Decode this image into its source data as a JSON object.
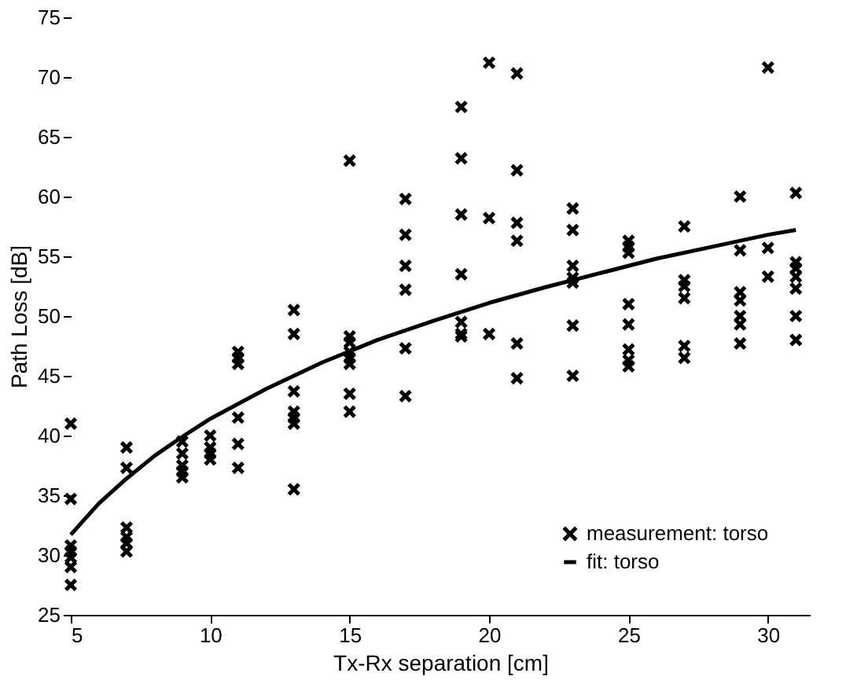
{
  "chart_data": {
    "type": "scatter",
    "xlabel": "Tx-Rx separation [cm]",
    "ylabel": "Path Loss [dB]",
    "xlim": [
      5,
      31.5
    ],
    "xticks": [
      5,
      10,
      15,
      20,
      25,
      30
    ],
    "ylim": [
      25,
      75
    ],
    "yticks": [
      25,
      30,
      35,
      40,
      45,
      50,
      55,
      60,
      65,
      70,
      75
    ],
    "grid": false,
    "legend": "bottom right",
    "series": [
      {
        "name": "measurement: torso",
        "color": "#000000",
        "marker": "cross",
        "x": [
          5,
          5,
          5,
          5,
          5,
          5,
          5,
          7,
          7,
          7,
          7,
          7,
          7,
          9,
          9,
          9,
          9,
          9,
          10,
          10,
          10,
          10,
          11,
          11,
          11,
          11,
          11,
          11,
          13,
          13,
          13,
          13,
          13,
          13,
          13,
          15,
          15,
          15,
          15,
          15,
          15,
          15,
          15,
          17,
          17,
          17,
          17,
          17,
          17,
          19,
          19,
          19,
          19,
          19,
          19,
          19,
          20,
          20,
          20,
          21,
          21,
          21,
          21,
          21,
          21,
          23,
          23,
          23,
          23,
          23,
          23,
          23,
          25,
          25,
          25,
          25,
          25,
          25,
          25,
          25,
          27,
          27,
          27,
          27,
          27,
          27,
          29,
          29,
          29,
          29,
          29,
          29,
          29,
          30,
          30,
          30,
          31,
          31,
          31,
          31,
          31,
          31,
          31
        ],
        "values": [
          41,
          34.7,
          30.8,
          30.3,
          29.8,
          29,
          27.5,
          39,
          37.3,
          32.3,
          31.5,
          31,
          30.3,
          39.5,
          38.5,
          37.5,
          37,
          36.5,
          40,
          39,
          38.5,
          38,
          47,
          46.5,
          46,
          41.5,
          39.3,
          37.3,
          50.5,
          48.5,
          43.7,
          42,
          41.5,
          41,
          35.5,
          63,
          48.3,
          47.8,
          47,
          46.5,
          46,
          43.5,
          42,
          59.8,
          56.8,
          54.2,
          52.2,
          47.3,
          43.3,
          67.5,
          63.2,
          58.5,
          53.5,
          49.5,
          48.5,
          48.3,
          71.2,
          58.2,
          48.5,
          70.3,
          62.2,
          57.8,
          56.3,
          47.7,
          44.8,
          59,
          57.2,
          54.2,
          53.2,
          52.8,
          49.2,
          45,
          56.3,
          55.8,
          55.3,
          51,
          49.3,
          47.2,
          46.3,
          45.8,
          57.5,
          53,
          52.5,
          51.5,
          47.5,
          46.5,
          60,
          55.5,
          52,
          51.3,
          50,
          49.3,
          47.7,
          70.8,
          55.7,
          53.3,
          60.3,
          54.5,
          54,
          53.3,
          52.3,
          50,
          48
        ]
      },
      {
        "name": "fit: torso",
        "type": "line",
        "color": "#000000",
        "line_style": "solid",
        "x": [
          5,
          6,
          7,
          8,
          9,
          10,
          12,
          14,
          16,
          18,
          20,
          22,
          24,
          26,
          28,
          30,
          31
        ],
        "values": [
          31.7,
          34.3,
          36.4,
          38.3,
          39.9,
          41.4,
          43.9,
          46.1,
          48.0,
          49.6,
          51.1,
          52.4,
          53.6,
          54.8,
          55.8,
          56.8,
          57.2
        ]
      }
    ]
  }
}
